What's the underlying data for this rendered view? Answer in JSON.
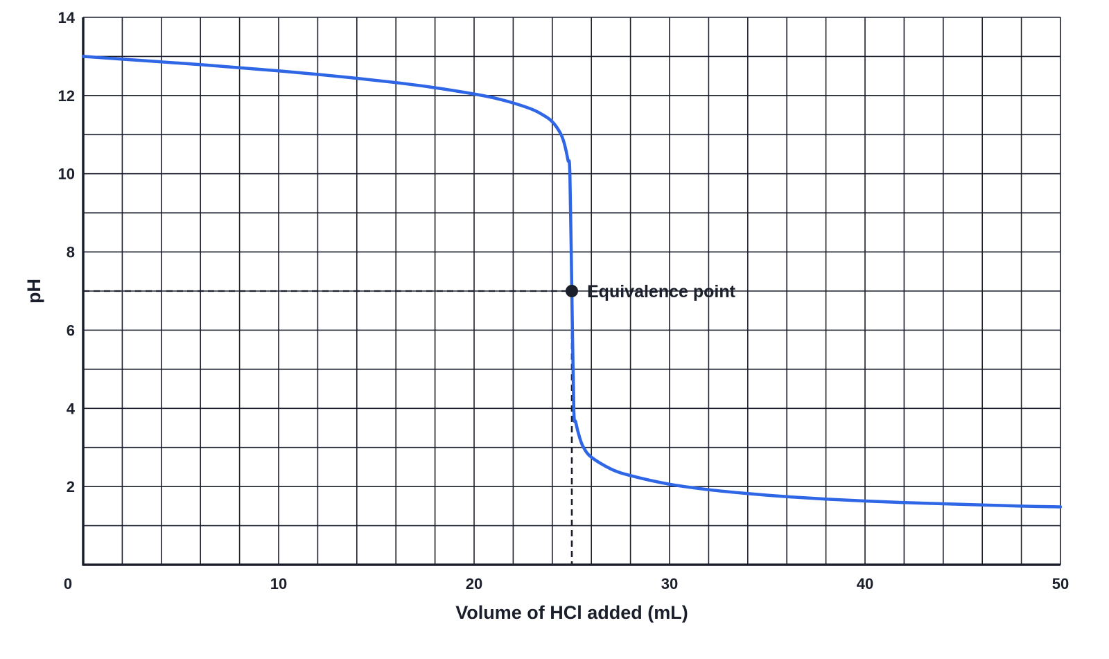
{
  "chart_data": {
    "type": "line",
    "title": "",
    "xlabel": "Volume of HCl added (mL)",
    "ylabel": "pH",
    "xlim": [
      0,
      50
    ],
    "ylim": [
      0,
      14
    ],
    "x_ticks": [
      0,
      10,
      20,
      30,
      40,
      50
    ],
    "y_ticks": [
      2,
      4,
      6,
      8,
      10,
      12,
      14
    ],
    "grid": true,
    "legend": "none",
    "series": [
      {
        "color": "#2f66e6",
        "points": [
          [
            0,
            13.0
          ],
          [
            2,
            12.93
          ],
          [
            4,
            12.86
          ],
          [
            6,
            12.79
          ],
          [
            8,
            12.71
          ],
          [
            10,
            12.63
          ],
          [
            12,
            12.54
          ],
          [
            14,
            12.44
          ],
          [
            16,
            12.33
          ],
          [
            18,
            12.2
          ],
          [
            20,
            12.04
          ],
          [
            21,
            11.94
          ],
          [
            22,
            11.81
          ],
          [
            23,
            11.64
          ],
          [
            23.6,
            11.48
          ],
          [
            24,
            11.33
          ],
          [
            24.4,
            11.05
          ],
          [
            24.6,
            10.8
          ],
          [
            24.8,
            10.35
          ],
          [
            24.9,
            10.0
          ],
          [
            25.0,
            7.0
          ],
          [
            25.1,
            4.0
          ],
          [
            25.2,
            3.65
          ],
          [
            25.4,
            3.25
          ],
          [
            25.6,
            3.0
          ],
          [
            26,
            2.75
          ],
          [
            27,
            2.45
          ],
          [
            28,
            2.28
          ],
          [
            30,
            2.06
          ],
          [
            32,
            1.92
          ],
          [
            34,
            1.82
          ],
          [
            36,
            1.74
          ],
          [
            38,
            1.68
          ],
          [
            40,
            1.63
          ],
          [
            42,
            1.59
          ],
          [
            44,
            1.56
          ],
          [
            46,
            1.53
          ],
          [
            48,
            1.5
          ],
          [
            50,
            1.48
          ]
        ]
      }
    ],
    "annotations": [
      {
        "text": "Equivalence point",
        "x": 25,
        "y": 7,
        "marker": "dot",
        "guide_lines": "dashed"
      }
    ],
    "colors": {
      "line": "#2f66e6",
      "grid": "#1a1f2b",
      "text": "#1a1f2b"
    }
  }
}
